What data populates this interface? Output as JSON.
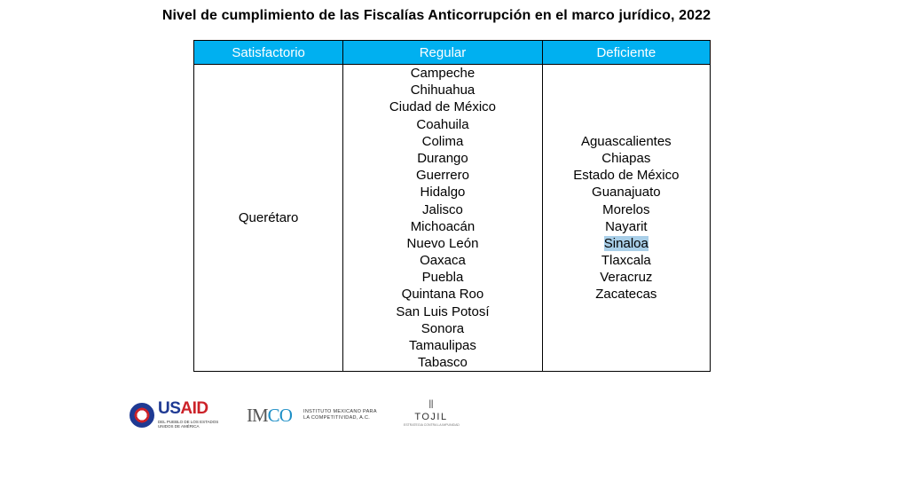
{
  "title": "Nivel de cumplimiento de las Fiscalías Anticorrupción en el marco jurídico, 2022",
  "table": {
    "headers": [
      "Satisfactorio",
      "Regular",
      "Deficiente"
    ],
    "header_color": "#00b0f0",
    "satisfactorio": [
      "Querétaro"
    ],
    "regular": [
      "Campeche",
      "Chihuahua",
      "Ciudad de México",
      "Coahuila",
      "Colima",
      "Durango",
      "Guerrero",
      "Hidalgo",
      "Jalisco",
      "Michoacán",
      "Nuevo León",
      "Oaxaca",
      "Puebla",
      "Quintana Roo",
      "San Luis Potosí",
      "Sonora",
      "Tamaulipas",
      "Tabasco"
    ],
    "deficiente": [
      "Aguascalientes",
      "Chiapas",
      "Estado de México",
      "Guanajuato",
      "Morelos",
      "Nayarit",
      "Sinaloa",
      "Tlaxcala",
      "Veracruz",
      "Zacatecas"
    ],
    "highlighted_item": "Sinaloa"
  },
  "logos": {
    "usaid": {
      "icon": "usaid-seal-icon",
      "word_us": "US",
      "word_aid": "AID",
      "subtitle_line1": "DEL PUEBLO DE LOS ESTADOS",
      "subtitle_line2": "UNIDOS DE AMÉRICA",
      "brand_blue": "#1f3a93",
      "brand_red": "#cc2229"
    },
    "imco": {
      "mark_prefix": "IM",
      "mark_o": "C",
      "mark_suffix": "O",
      "text_line1": "INSTITUTO MEXICANO PARA",
      "text_line2": "LA COMPETITIVIDAD, A.C.",
      "accent": "#1e8fc6"
    },
    "tojil": {
      "icon": "column-icon",
      "word": "TOJIL",
      "subtitle": "ESTRATEGIA CONTRA LA IMPUNIDAD"
    }
  }
}
